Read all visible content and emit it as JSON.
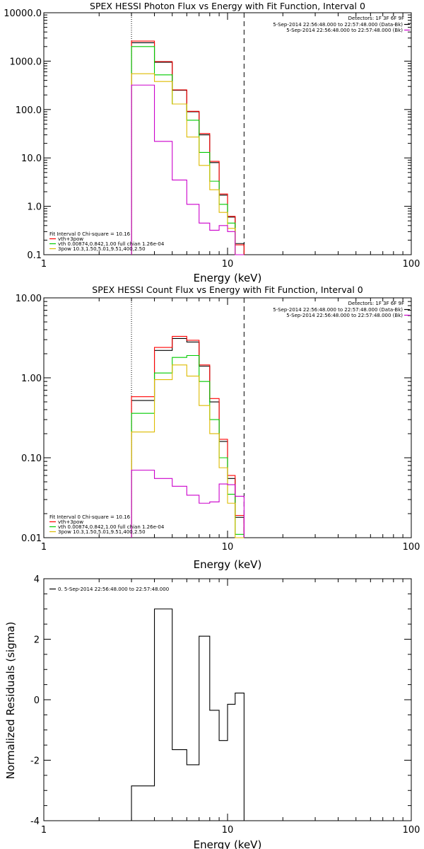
{
  "chart_data": [
    {
      "type": "line",
      "title": "SPEX HESSI Photon Flux vs Energy with Fit Function, Interval 0",
      "xlabel": "Energy (keV)",
      "ylabel": "",
      "xscale": "log",
      "yscale": "log",
      "xlim": [
        1,
        100
      ],
      "ylim": [
        0.1,
        10000
      ],
      "xtick_labels": [
        "1",
        "10",
        "100"
      ],
      "ytick_labels": [
        "0.1",
        "1.0",
        "10.0",
        "100.0",
        "1000.0",
        "10000.0"
      ],
      "vlines": [
        {
          "x": 3.0,
          "style": "dotted"
        },
        {
          "x": 12.3,
          "style": "dashed"
        }
      ],
      "legend_top": {
        "header": "Detectors: 1F 3F 6F 9F",
        "entries": [
          {
            "label": "5-Sep-2014 22:56:48.000 to 22:57:48.000 (Data-Bk)",
            "color": "#000000"
          },
          {
            "label": "5-Sep-2014 22:56:48.000 to 22:57:48.000 (Bk)",
            "color": "#cc00cc"
          }
        ]
      },
      "legend_bottom": {
        "header": "Fit Interval 0   Chi-square = 10.16",
        "entries": [
          {
            "label": "vth+3pow",
            "color": "#ff0000"
          },
          {
            "label": "vth 0.00874,0.842,1.00  full chian 1.26e-04",
            "color": "#00cc00"
          },
          {
            "label": "3pow 10.3,1.50,5.01,9.51,400,2.50",
            "color": "#ddbb00"
          }
        ]
      },
      "bin_edges": [
        3.0,
        4.0,
        5.0,
        6.0,
        7.0,
        8.0,
        9.0,
        10.0,
        11.0,
        12.3
      ],
      "series": [
        {
          "color": "#000000",
          "values": [
            2400,
            950,
            250,
            90,
            30,
            8,
            1.7,
            0.6,
            0.17
          ]
        },
        {
          "color": "#ff0000",
          "values": [
            2600,
            980,
            255,
            92,
            32,
            8.5,
            1.8,
            0.62,
            0.16
          ]
        },
        {
          "color": "#00cc00",
          "values": [
            2000,
            520,
            130,
            60,
            13,
            3.3,
            1.1,
            0.45,
            0.1
          ]
        },
        {
          "color": "#ddbb00",
          "values": [
            550,
            380,
            130,
            27,
            7,
            2.2,
            0.75,
            0.35,
            0.1
          ]
        },
        {
          "color": "#cc00cc",
          "values": [
            320,
            22,
            3.5,
            1.1,
            0.45,
            0.32,
            0.4,
            0.3,
            0.1
          ]
        }
      ]
    },
    {
      "type": "line",
      "title": "SPEX HESSI Count Flux vs Energy with Fit Function, Interval 0",
      "xlabel": "Energy (keV)",
      "ylabel": "",
      "xscale": "log",
      "yscale": "log",
      "xlim": [
        1,
        100
      ],
      "ylim": [
        0.01,
        10
      ],
      "xtick_labels": [
        "1",
        "10",
        "100"
      ],
      "ytick_labels": [
        "0.01",
        "0.10",
        "1.00",
        "10.00"
      ],
      "vlines": [
        {
          "x": 3.0,
          "style": "dotted"
        },
        {
          "x": 12.3,
          "style": "dashed"
        }
      ],
      "legend_top": {
        "header": "Detectors: 1F 3F 6F 9F",
        "entries": [
          {
            "label": "5-Sep-2014 22:56:48.000 to 22:57:48.000 (Data-Bk)",
            "color": "#000000"
          },
          {
            "label": "5-Sep-2014 22:56:48.000 to 22:57:48.000 (Bk)",
            "color": "#cc00cc"
          }
        ]
      },
      "legend_bottom": {
        "header": "Fit Interval 0   Chi-square = 10.16",
        "entries": [
          {
            "label": "vth+3pow",
            "color": "#ff0000"
          },
          {
            "label": "vth 0.00874,0.842,1.00  full chian 1.26e-04",
            "color": "#00cc00"
          },
          {
            "label": "3pow 10.3,1.50,5.01,9.51,400,2.50",
            "color": "#ddbb00"
          }
        ]
      },
      "bin_edges": [
        3.0,
        4.0,
        5.0,
        6.0,
        7.0,
        8.0,
        9.0,
        10.0,
        11.0,
        12.3
      ],
      "series": [
        {
          "color": "#000000",
          "values": [
            0.52,
            2.2,
            3.1,
            2.8,
            1.4,
            0.5,
            0.16,
            0.055,
            0.018
          ]
        },
        {
          "color": "#ff0000",
          "values": [
            0.58,
            2.4,
            3.3,
            2.95,
            1.45,
            0.55,
            0.17,
            0.06,
            0.019
          ]
        },
        {
          "color": "#00cc00",
          "values": [
            0.36,
            1.15,
            1.8,
            1.9,
            0.9,
            0.3,
            0.1,
            0.035,
            0.011
          ]
        },
        {
          "color": "#ddbb00",
          "values": [
            0.21,
            0.95,
            1.45,
            1.05,
            0.45,
            0.2,
            0.075,
            0.027,
            0.009
          ]
        },
        {
          "color": "#cc00cc",
          "values": [
            0.07,
            0.055,
            0.044,
            0.034,
            0.027,
            0.028,
            0.047,
            0.046,
            0.033
          ]
        }
      ]
    },
    {
      "type": "line",
      "title": "",
      "xlabel": "Energy (keV)",
      "ylabel": "Normalized Residuals (sigma)",
      "xscale": "log",
      "yscale": "linear",
      "xlim": [
        1,
        100
      ],
      "ylim": [
        -4,
        4
      ],
      "xtick_labels": [
        "1",
        "10",
        "100"
      ],
      "ytick_labels": [
        "-4",
        "-2",
        "0",
        "2",
        "4"
      ],
      "legend": {
        "entries": [
          {
            "label": "0. 5-Sep-2014 22:56:48.000 to 22:57:48.000",
            "color": "#000000"
          }
        ]
      },
      "bin_edges": [
        3.0,
        4.0,
        5.0,
        6.0,
        7.0,
        8.0,
        9.0,
        10.0,
        11.0,
        12.3
      ],
      "series": [
        {
          "color": "#000000",
          "values": [
            -2.85,
            3.0,
            -1.65,
            -2.15,
            2.1,
            -0.35,
            -1.35,
            -0.15,
            0.22
          ]
        }
      ]
    }
  ]
}
